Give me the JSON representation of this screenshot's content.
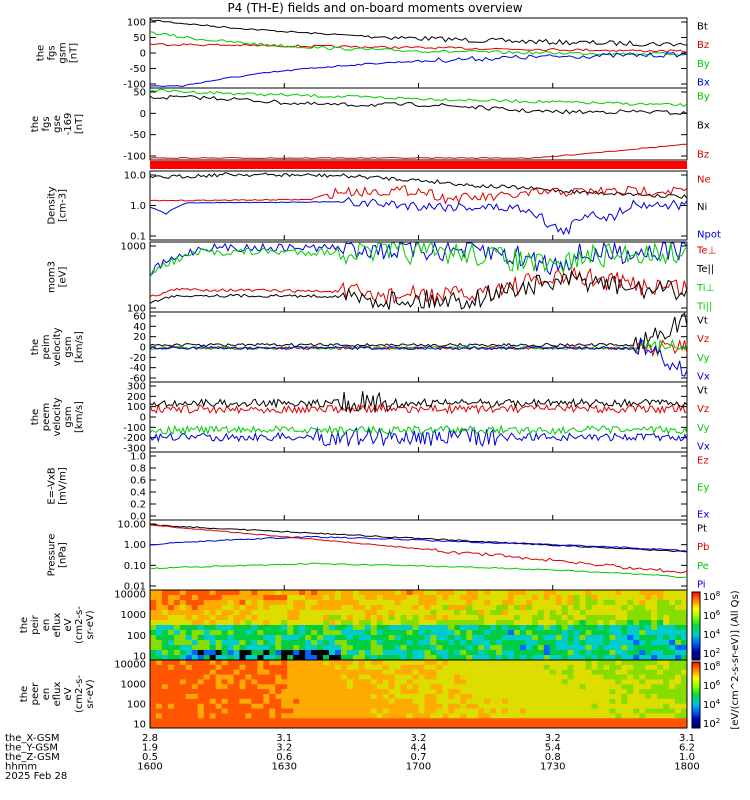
{
  "title": "P4 (TH-E) fields and on-board moments overview",
  "panels": [
    {
      "ylabel": [
        "the",
        "fgs",
        "gsm",
        "[nT]"
      ],
      "yticks": [
        "100",
        "50",
        "0",
        "-50",
        "-100"
      ],
      "legend": [
        {
          "text": "Bt",
          "color": "#000000"
        },
        {
          "text": "Bz",
          "color": "#dd0000"
        },
        {
          "text": "By",
          "color": "#00cc00"
        },
        {
          "text": "Bx",
          "color": "#0000dd"
        }
      ]
    },
    {
      "ylabel": [
        "the",
        "fgs",
        "gse",
        "-169",
        "[nT]"
      ],
      "yticks": [
        "50",
        "0",
        "-50",
        "-100"
      ],
      "legend": [
        {
          "text": "By",
          "color": "#00cc00"
        },
        {
          "text": "Bx",
          "color": "#000000"
        },
        {
          "text": "Bz",
          "color": "#dd0000"
        }
      ]
    },
    {
      "ylabel": [
        "Density",
        "[cm-3]"
      ],
      "yticks": [
        "10.0",
        "1.0",
        "0.1"
      ],
      "legend": [
        {
          "text": "Ne",
          "color": "#dd0000"
        },
        {
          "text": "Ni",
          "color": "#000000"
        },
        {
          "text": "Npot",
          "color": "#0000dd"
        }
      ]
    },
    {
      "ylabel": [
        "mom3",
        "[eV]"
      ],
      "yticks": [
        "1000",
        "100"
      ],
      "legend": [
        {
          "text": "Te⊥",
          "color": "#dd0000"
        },
        {
          "text": "Te||",
          "color": "#000000"
        },
        {
          "text": "Ti⊥",
          "color": "#00cc00"
        },
        {
          "text": "Ti||",
          "color": "#00cc00"
        }
      ]
    },
    {
      "ylabel": [
        "the",
        "peim",
        "velocity",
        "gsm",
        "[km/s]"
      ],
      "yticks": [
        "60",
        "40",
        "20",
        "0",
        "-20",
        "-40",
        "-60"
      ],
      "legend": [
        {
          "text": "Vt",
          "color": "#000000"
        },
        {
          "text": "Vz",
          "color": "#dd0000"
        },
        {
          "text": "Vy",
          "color": "#00cc00"
        },
        {
          "text": "Vx",
          "color": "#0000dd"
        }
      ]
    },
    {
      "ylabel": [
        "the",
        "peem",
        "velocity",
        "gsm",
        "[km/s]"
      ],
      "yticks": [
        "300",
        "200",
        "100",
        "0",
        "-100",
        "-200",
        "-300"
      ],
      "legend": [
        {
          "text": "Vt",
          "color": "#000000"
        },
        {
          "text": "Vz",
          "color": "#dd0000"
        },
        {
          "text": "Vy",
          "color": "#00cc00"
        },
        {
          "text": "Vx",
          "color": "#0000dd"
        }
      ]
    },
    {
      "ylabel": [
        "E=-VxB",
        "[mV/m]"
      ],
      "yticks": [
        "1.0",
        "0.8",
        "0.6",
        "0.4",
        "0.2",
        "0.0"
      ],
      "legend": [
        {
          "text": "Ez",
          "color": "#dd0000"
        },
        {
          "text": "Ey",
          "color": "#00cc00"
        },
        {
          "text": "Ex",
          "color": "#0000dd"
        }
      ]
    },
    {
      "ylabel": [
        "Pressure",
        "[nPa]"
      ],
      "yticks": [
        "10.00",
        "1.00",
        "0.10",
        "0.01"
      ],
      "legend": [
        {
          "text": "Pt",
          "color": "#000000"
        },
        {
          "text": "Pb",
          "color": "#dd0000"
        },
        {
          "text": "Pe",
          "color": "#00cc00"
        },
        {
          "text": "Pi",
          "color": "#0000dd"
        }
      ]
    },
    {
      "ylabel": [
        "the",
        "peir",
        "en",
        "eflux",
        "eV",
        "(cm2-s-",
        "sr-eV)"
      ],
      "yticks": [
        "10000",
        "1000",
        "100",
        "10"
      ],
      "legend": []
    },
    {
      "ylabel": [
        "the",
        "peer",
        "en",
        "eflux",
        "eV",
        "(cm2-s-",
        "sr-eV)"
      ],
      "yticks": [
        "10000",
        "1000",
        "100",
        "10"
      ],
      "legend": []
    }
  ],
  "colorbar": {
    "ticks_top": [
      "10^8",
      "10^6",
      "10^4",
      "10^2"
    ],
    "ticks_bottom": [
      "10^8",
      "10^6",
      "10^4",
      "10^2"
    ],
    "label": "[eV/(cm^2-s-sr-eV)] (All Qs)"
  },
  "footer": {
    "rows": [
      {
        "label": "the_X-GSM",
        "values": [
          "2.8",
          "3.1",
          "3.2",
          "3.2",
          "3.1"
        ]
      },
      {
        "label": "the_Y-GSM",
        "values": [
          "1.9",
          "3.2",
          "4.4",
          "5.4",
          "6.2"
        ]
      },
      {
        "label": "the_Z-GSM",
        "values": [
          "0.5",
          "0.6",
          "0.7",
          "0.8",
          "1.0"
        ]
      },
      {
        "label": "hhmm",
        "values": [
          "1600",
          "1630",
          "1700",
          "1730",
          "1800"
        ]
      }
    ],
    "date": "2025 Feb 28"
  },
  "chart_data": {
    "type": "line",
    "x": [
      "1600",
      "1630",
      "1700",
      "1730",
      "1800"
    ],
    "series": [
      {
        "name": "Bt",
        "values": [
          100,
          70,
          45,
          35,
          25
        ]
      },
      {
        "name": "Bz",
        "values": [
          25,
          12,
          5,
          3,
          2
        ]
      },
      {
        "name": "By",
        "values": [
          60,
          20,
          5,
          0,
          -5
        ]
      },
      {
        "name": "Bx",
        "values": [
          -100,
          -45,
          -20,
          -10,
          -5
        ]
      },
      {
        "name": "Ne",
        "values": [
          3,
          2,
          6,
          5,
          6
        ]
      },
      {
        "name": "Ni",
        "values": [
          25,
          30,
          12,
          5,
          3
        ]
      },
      {
        "name": "Npot",
        "values": [
          1,
          1.5,
          1,
          0.3,
          1
        ]
      },
      {
        "name": "Pt",
        "values": [
          9,
          3.5,
          1.5,
          0.8,
          0.5
        ]
      },
      {
        "name": "Pb",
        "values": [
          9,
          1.5,
          0.4,
          0.1,
          0.05
        ]
      },
      {
        "name": "Pe",
        "values": [
          0.07,
          0.12,
          0.08,
          0.05,
          0.03
        ]
      },
      {
        "name": "Pi",
        "values": [
          1,
          2.5,
          1.4,
          0.8,
          0.5
        ]
      }
    ],
    "grid": false,
    "legend": "right"
  }
}
